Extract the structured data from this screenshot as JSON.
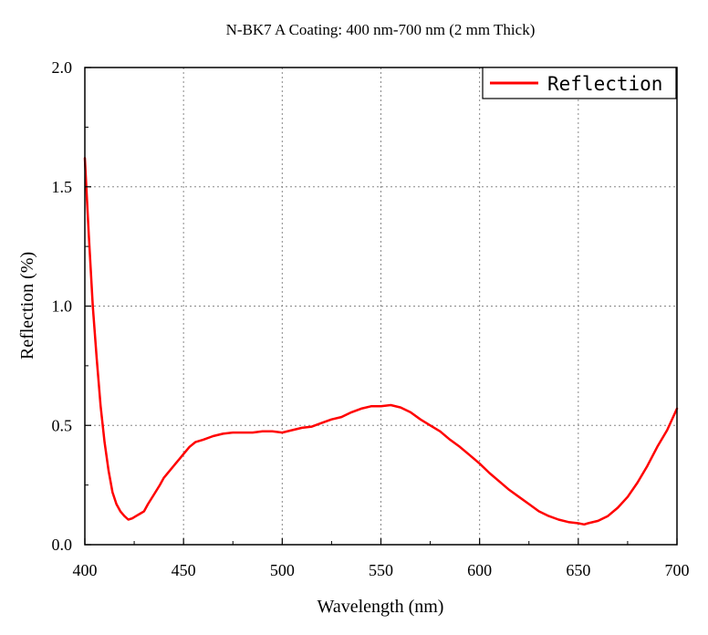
{
  "chart_data": {
    "type": "line",
    "title": "N-BK7 A Coating: 400 nm-700 nm (2 mm Thick)",
    "xlabel": "Wavelength (nm)",
    "ylabel": "Reflection (%)",
    "xlim": [
      400,
      700
    ],
    "ylim": [
      0,
      2
    ],
    "xticks": [
      "400",
      "450",
      "500",
      "550",
      "600",
      "650",
      "700"
    ],
    "yticks": [
      "0.0",
      "0.5",
      "1.0",
      "1.5",
      "2.0"
    ],
    "grid": true,
    "legend_position": "top-right",
    "series": [
      {
        "name": "Reflection",
        "color": "#ff0000",
        "x": [
          400,
          402,
          404,
          406,
          408,
          410,
          412,
          414,
          416,
          418,
          420,
          422,
          424,
          426,
          428,
          430,
          432,
          435,
          438,
          440,
          443,
          446,
          448,
          450,
          453,
          456,
          460,
          465,
          470,
          475,
          480,
          485,
          490,
          495,
          500,
          505,
          510,
          515,
          520,
          525,
          530,
          535,
          540,
          545,
          550,
          555,
          560,
          565,
          570,
          575,
          580,
          585,
          590,
          595,
          600,
          605,
          610,
          615,
          620,
          625,
          630,
          635,
          640,
          645,
          650,
          653,
          655,
          660,
          665,
          670,
          675,
          680,
          685,
          690,
          695,
          700
        ],
        "values": [
          1.62,
          1.3,
          1.0,
          0.78,
          0.58,
          0.43,
          0.31,
          0.22,
          0.17,
          0.14,
          0.12,
          0.105,
          0.11,
          0.12,
          0.13,
          0.14,
          0.17,
          0.21,
          0.25,
          0.28,
          0.31,
          0.34,
          0.36,
          0.38,
          0.41,
          0.43,
          0.44,
          0.455,
          0.465,
          0.47,
          0.47,
          0.47,
          0.475,
          0.475,
          0.47,
          0.48,
          0.49,
          0.495,
          0.51,
          0.525,
          0.535,
          0.555,
          0.57,
          0.58,
          0.58,
          0.585,
          0.575,
          0.555,
          0.525,
          0.5,
          0.475,
          0.44,
          0.41,
          0.375,
          0.34,
          0.3,
          0.265,
          0.23,
          0.2,
          0.17,
          0.14,
          0.12,
          0.105,
          0.095,
          0.09,
          0.085,
          0.09,
          0.1,
          0.12,
          0.155,
          0.2,
          0.26,
          0.33,
          0.41,
          0.48,
          0.57
        ]
      }
    ]
  }
}
